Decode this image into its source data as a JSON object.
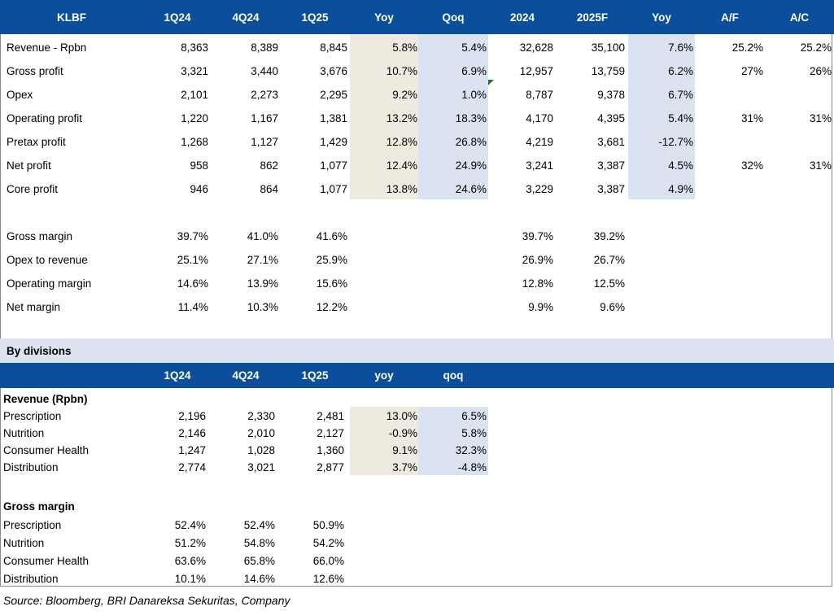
{
  "colors": {
    "header_bg": "#0b4f9c",
    "yoy_band": "#eeeae0",
    "qoq_band": "#dae3ef",
    "division_bar": "#dae3ef"
  },
  "main_header": [
    "KLBF",
    "1Q24",
    "4Q24",
    "1Q25",
    "Yoy",
    "Qoq",
    "2024",
    "2025F",
    "Yoy",
    "A/F",
    "A/C"
  ],
  "main_rows": [
    {
      "label": "Revenue - Rpbn",
      "q1q24": "8,363",
      "q4q24": "8,389",
      "q1q25": "8,845",
      "yoy": "5.8%",
      "qoq": "5.4%",
      "y2024": "32,628",
      "y2025f": "35,100",
      "yoy2": "7.6%",
      "af": "25.2%",
      "ac": "25.2%"
    },
    {
      "label": "Gross profit",
      "q1q24": "3,321",
      "q4q24": "3,440",
      "q1q25": "3,676",
      "yoy": "10.7%",
      "qoq": "6.9%",
      "y2024": "12,957",
      "y2025f": "13,759",
      "yoy2": "6.2%",
      "af": "27%",
      "ac": "26%"
    },
    {
      "label": "Opex",
      "q1q24": "2,101",
      "q4q24": "2,273",
      "q1q25": "2,295",
      "yoy": "9.2%",
      "qoq": "1.0%",
      "y2024": "8,787",
      "y2025f": "9,378",
      "yoy2": "6.7%",
      "af": "",
      "ac": ""
    },
    {
      "label": "Operating profit",
      "q1q24": "1,220",
      "q4q24": "1,167",
      "q1q25": "1,381",
      "yoy": "13.2%",
      "qoq": "18.3%",
      "y2024": "4,170",
      "y2025f": "4,395",
      "yoy2": "5.4%",
      "af": "31%",
      "ac": "31%"
    },
    {
      "label": "Pretax profit",
      "q1q24": "1,268",
      "q4q24": "1,127",
      "q1q25": "1,429",
      "yoy": "12.8%",
      "qoq": "26.8%",
      "y2024": "4,219",
      "y2025f": "3,681",
      "yoy2": "-12.7%",
      "af": "",
      "ac": ""
    },
    {
      "label": "Net profit",
      "q1q24": "958",
      "q4q24": "862",
      "q1q25": "1,077",
      "yoy": "12.4%",
      "qoq": "24.9%",
      "y2024": "3,241",
      "y2025f": "3,387",
      "yoy2": "4.5%",
      "af": "32%",
      "ac": "31%"
    },
    {
      "label": "Core profit",
      "q1q24": "946",
      "q4q24": "864",
      "q1q25": "1,077",
      "yoy": "13.8%",
      "qoq": "24.6%",
      "y2024": "3,229",
      "y2025f": "3,387",
      "yoy2": "4.9%",
      "af": "",
      "ac": ""
    }
  ],
  "margin_rows": [
    {
      "label": "Gross margin",
      "q1q24": "39.7%",
      "q4q24": "41.0%",
      "q1q25": "41.6%",
      "y2024": "39.7%",
      "y2025f": "39.2%"
    },
    {
      "label": "Opex to revenue",
      "q1q24": "25.1%",
      "q4q24": "27.1%",
      "q1q25": "25.9%",
      "y2024": "26.9%",
      "y2025f": "26.7%"
    },
    {
      "label": "Operating margin",
      "q1q24": "14.6%",
      "q4q24": "13.9%",
      "q1q25": "15.6%",
      "y2024": "12.8%",
      "y2025f": "12.5%"
    },
    {
      "label": "Net margin",
      "q1q24": "11.4%",
      "q4q24": "10.3%",
      "q1q25": "12.2%",
      "y2024": "9.9%",
      "y2025f": "9.6%"
    }
  ],
  "divisions_title": "By divisions",
  "division_header": [
    "1Q24",
    "4Q24",
    "1Q25",
    "yoy",
    "qoq"
  ],
  "revenue_section_title": "Revenue (Rpbn)",
  "revenue_rows": [
    {
      "label": "Prescription",
      "q1q24": "2,196",
      "q4q24": "2,330",
      "q1q25": "2,481",
      "yoy": "13.0%",
      "qoq": "6.5%"
    },
    {
      "label": "Nutrition",
      "q1q24": "2,146",
      "q4q24": "2,010",
      "q1q25": "2,127",
      "yoy": "-0.9%",
      "qoq": "5.8%"
    },
    {
      "label": "Consumer Health",
      "q1q24": "1,247",
      "q4q24": "1,028",
      "q1q25": "1,360",
      "yoy": "9.1%",
      "qoq": "32.3%"
    },
    {
      "label": "Distribution",
      "q1q24": "2,774",
      "q4q24": "3,021",
      "q1q25": "2,877",
      "yoy": "3.7%",
      "qoq": "-4.8%"
    }
  ],
  "gm_section_title": "Gross margin",
  "gm_rows": [
    {
      "label": "Prescription",
      "q1q24": "52.4%",
      "q4q24": "52.4%",
      "q1q25": "50.9%"
    },
    {
      "label": "Nutrition",
      "q1q24": "51.2%",
      "q4q24": "54.8%",
      "q1q25": "54.2%"
    },
    {
      "label": "Consumer Health",
      "q1q24": "63.6%",
      "q4q24": "65.8%",
      "q1q25": "66.0%"
    },
    {
      "label": "Distribution",
      "q1q24": "10.1%",
      "q4q24": "14.6%",
      "q1q25": "12.6%"
    }
  ],
  "source": "Source: Bloomberg, BRI Danareksa Sekuritas, Company"
}
